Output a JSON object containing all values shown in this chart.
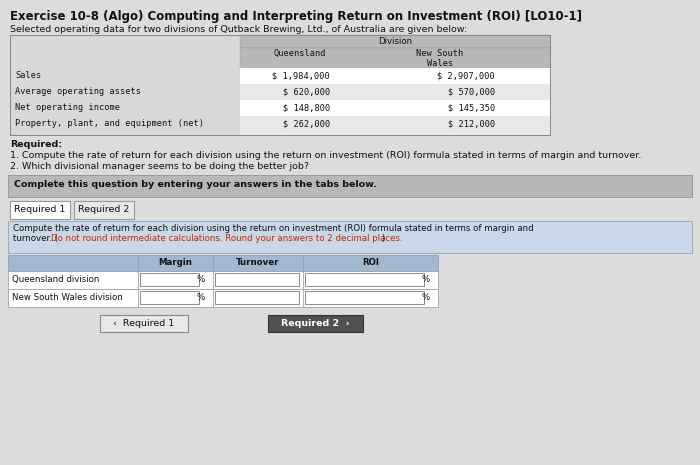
{
  "title": "Exercise 10-8 (Algo) Computing and Interpreting Return on Investment (ROI) [LO10-1]",
  "subtitle": "Selected operating data for two divisions of Qutback Brewing, Ltd., of Australia are given below:",
  "division_header": "Division",
  "col1_header": "Queensland",
  "col2_header": "New South\nWales",
  "row_labels": [
    "Sales",
    "Average operating assets",
    "Net operating income",
    "Property, plant, and equipment (net)"
  ],
  "queensland_values": [
    "$ 1,984,000",
    "$ 620,000",
    "$ 148,800",
    "$ 262,000"
  ],
  "nsw_values": [
    "$ 2,907,000",
    "$ 570,000",
    "$ 145,350",
    "$ 212,000"
  ],
  "required_header": "Required:",
  "required_items": [
    "1. Compute the rate of return for each division using the return on investment (ROI) formula stated in terms of margin and turnover.",
    "2. Which divisional manager seems to be doing the better job?"
  ],
  "complete_text": "Complete this question by entering your answers in the tabs below.",
  "tab1": "Required 1",
  "tab2": "Required 2",
  "compute_text_line1": "Compute the rate of return for each division using the return on investment (ROI) formula stated in terms of margin and",
  "compute_text_line2": "turnover. (Do not round intermediate calculations. Round your answers to 2 decimal places.)",
  "compute_text_red": "Do not round intermediate calculations. Round your answers to 2 decimal places.",
  "table2_col_headers": [
    "Margin",
    "Turnover",
    "ROI"
  ],
  "division_rows": [
    "Queensland division",
    "New South Wales division"
  ],
  "percent_signs": [
    "%",
    "%"
  ],
  "btn1_text": "‹  Required 1",
  "btn2_text": "Required 2  ›",
  "bg_color": "#dcdcdc",
  "white": "#ffffff",
  "header_bg": "#c0c0c0",
  "medium_gray": "#b8b8b8",
  "light_gray": "#e8e8e8",
  "row_light": "#d8d8d8",
  "blue_bg": "#c8d8e8",
  "blue_header": "#a0b8d0",
  "btn2_bg": "#505050",
  "red_text": "#cc2200",
  "title_fontsize": 8.5,
  "body_fontsize": 6.8,
  "small_fontsize": 6.2,
  "mono_fontsize": 6.0
}
